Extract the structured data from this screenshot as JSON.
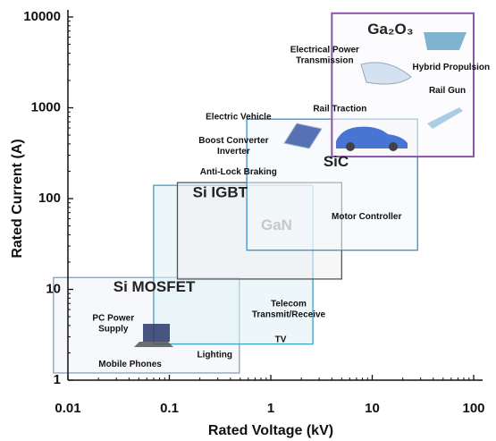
{
  "chart_data": {
    "type": "region",
    "x_label": "Rated Voltage  (kV)",
    "y_label": "Rated Current  (A)",
    "xscale": "log",
    "yscale": "log",
    "xlim": [
      0.01,
      100
    ],
    "ylim": [
      1,
      10000
    ],
    "xticks": [
      0.01,
      0.1,
      1,
      10,
      100
    ],
    "yticks": [
      1,
      10,
      100,
      1000,
      10000
    ],
    "regions": [
      {
        "name": "Si MOSFET",
        "color": "#8a9fb5",
        "fill": "#eef3f7",
        "label_color": "#222",
        "x": [
          0.0072,
          0.49
        ],
        "y": [
          1.2,
          13.5
        ],
        "label_at": [
          0.028,
          10.5
        ]
      },
      {
        "name": "Si IGBT",
        "color": "#3aa0c8",
        "fill": "#dff0f5",
        "label_color": "#222",
        "x": [
          0.07,
          2.6
        ],
        "y": [
          2.5,
          140
        ],
        "label_at": [
          0.17,
          115
        ]
      },
      {
        "name": "GaN",
        "color": "#555555",
        "fill": "#f3f0f0",
        "label_color": "#c8c8c8",
        "x": [
          0.12,
          5
        ],
        "y": [
          13,
          150
        ],
        "label_at": [
          0.8,
          50
        ]
      },
      {
        "name": "SiC",
        "color": "#3a8fc8",
        "fill": "#f2f8fc",
        "label_color": "#222",
        "x": [
          0.58,
          28
        ],
        "y": [
          27,
          750
        ],
        "label_at": [
          3.3,
          250
        ]
      },
      {
        "name": "Ga₂O₃",
        "color": "#8a55aa",
        "fill": "#faf7fc",
        "label_color": "#222",
        "x": [
          4,
          100
        ],
        "y": [
          290,
          11000
        ],
        "label_at": [
          9,
          7200
        ]
      }
    ],
    "annotations": [
      {
        "lines": [
          "Electrical Power",
          "Transmission"
        ],
        "x": 3.4,
        "y": 3800
      },
      {
        "lines": [
          "Hybrid Propulsion"
        ],
        "x": 60,
        "y": 2800
      },
      {
        "lines": [
          "Rail Gun"
        ],
        "x": 55,
        "y": 1550
      },
      {
        "lines": [
          "Rail Traction"
        ],
        "x": 4.8,
        "y": 970
      },
      {
        "lines": [
          "Electric Vehicle"
        ],
        "x": 0.48,
        "y": 790
      },
      {
        "lines": [
          "Boost Converter",
          "Inverter"
        ],
        "x": 0.43,
        "y": 380
      },
      {
        "lines": [
          "Anti-Lock Braking"
        ],
        "x": 0.48,
        "y": 195
      },
      {
        "lines": [
          "Motor Controller"
        ],
        "x": 8.8,
        "y": 63
      },
      {
        "lines": [
          "Telecom",
          "Transmit/Receive"
        ],
        "x": 1.5,
        "y": 6
      },
      {
        "lines": [
          "TV"
        ],
        "x": 1.25,
        "y": 2.8
      },
      {
        "lines": [
          "PC Power",
          "Supply"
        ],
        "x": 0.028,
        "y": 4.2
      },
      {
        "lines": [
          "Mobile Phones"
        ],
        "x": 0.041,
        "y": 1.5
      },
      {
        "lines": [
          "Lighting"
        ],
        "x": 0.28,
        "y": 1.9
      }
    ]
  }
}
